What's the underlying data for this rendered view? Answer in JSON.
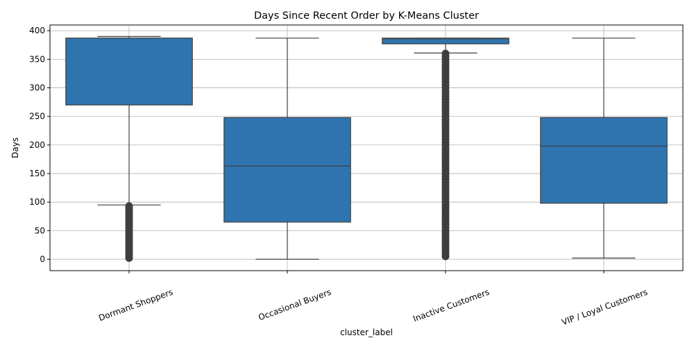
{
  "chart_data": {
    "type": "box",
    "title": "Days Since Recent Order by K-Means Cluster",
    "xlabel": "cluster_label",
    "ylabel": "Days",
    "ylim": [
      -20,
      410
    ],
    "yticks": [
      0,
      50,
      100,
      150,
      200,
      250,
      300,
      350,
      400
    ],
    "grid": true,
    "box_color": "#2e75b0",
    "line_color": "#3f3f3f",
    "categories": [
      "Dormant Shoppers",
      "Occasional Buyers",
      "Inactive Customers",
      "VIP / Loyal Customers"
    ],
    "boxes": [
      {
        "label": "Dormant Shoppers",
        "whisker_low": 95,
        "q1": 270,
        "median": 387,
        "q3": 387,
        "whisker_high": 390,
        "outliers": [
          93,
          90,
          86,
          82,
          78,
          74,
          70,
          66,
          62,
          58,
          54,
          50,
          46,
          42,
          38,
          34,
          30,
          26,
          22,
          18,
          14,
          10,
          6,
          2
        ]
      },
      {
        "label": "Occasional Buyers",
        "whisker_low": 0,
        "q1": 65,
        "median": 163,
        "q3": 248,
        "whisker_high": 387,
        "outliers": []
      },
      {
        "label": "Inactive Customers",
        "whisker_low": 361,
        "q1": 377,
        "median": 386,
        "q3": 387,
        "whisker_high": 387,
        "outliers": [
          360,
          355,
          350,
          345,
          340,
          335,
          330,
          325,
          320,
          315,
          310,
          305,
          300,
          295,
          290,
          285,
          280,
          275,
          270,
          265,
          260,
          255,
          250,
          245,
          240,
          235,
          230,
          225,
          220,
          215,
          210,
          205,
          200,
          195,
          190,
          185,
          180,
          175,
          170,
          165,
          160,
          155,
          150,
          145,
          140,
          135,
          130,
          125,
          120,
          115,
          110,
          105,
          100,
          95,
          90,
          85,
          80,
          75,
          70,
          65,
          60,
          55,
          50,
          45,
          40,
          35,
          30,
          25,
          20,
          15,
          10,
          5
        ]
      },
      {
        "label": "VIP / Loyal Customers",
        "whisker_low": 2,
        "q1": 98,
        "median": 198,
        "q3": 248,
        "whisker_high": 387,
        "outliers": []
      }
    ]
  }
}
